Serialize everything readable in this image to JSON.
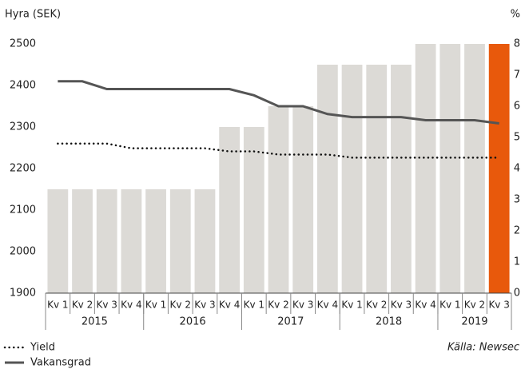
{
  "chart_data": {
    "type": "bar_line",
    "y_label": "Hyra (SEK)",
    "y2_label": "%",
    "source": "Källa: Newsec",
    "categories": [
      "Kv 1",
      "Kv 2",
      "Kv 3",
      "Kv 4",
      "Kv 1",
      "Kv 2",
      "Kv 3",
      "Kv 4",
      "Kv 1",
      "Kv 2",
      "Kv 3",
      "Kv 4",
      "Kv 1",
      "Kv 2",
      "Kv 3",
      "Kv 4",
      "Kv 1",
      "Kv 2",
      "Kv 3"
    ],
    "year_groups": [
      {
        "label": "2015",
        "size": 4
      },
      {
        "label": "2016",
        "size": 4
      },
      {
        "label": "2017",
        "size": 4
      },
      {
        "label": "2018",
        "size": 4
      },
      {
        "label": "2019",
        "size": 3
      }
    ],
    "ylim": [
      1900,
      2500
    ],
    "yticks": [
      1900,
      2000,
      2100,
      2200,
      2300,
      2400,
      2500
    ],
    "y2lim": [
      0,
      8
    ],
    "y2ticks": [
      0,
      1,
      2,
      3,
      4,
      5,
      6,
      7,
      8
    ],
    "grid": false,
    "bars": {
      "values": [
        2150,
        2150,
        2150,
        2150,
        2150,
        2150,
        2150,
        2300,
        2300,
        2350,
        2350,
        2450,
        2450,
        2450,
        2450,
        2500,
        2500,
        2500,
        2500
      ],
      "colors": [
        "#dcdad6",
        "#dcdad6",
        "#dcdad6",
        "#dcdad6",
        "#dcdad6",
        "#dcdad6",
        "#dcdad6",
        "#dcdad6",
        "#dcdad6",
        "#dcdad6",
        "#dcdad6",
        "#dcdad6",
        "#dcdad6",
        "#dcdad6",
        "#dcdad6",
        "#dcdad6",
        "#dcdad6",
        "#dcdad6",
        "#e8590c"
      ]
    },
    "series": [
      {
        "name": "Yield",
        "color": "#111111",
        "style": "dotted",
        "axis": "y2",
        "values": [
          4.8,
          4.8,
          4.8,
          4.65,
          4.65,
          4.65,
          4.65,
          4.55,
          4.55,
          4.45,
          4.45,
          4.45,
          4.35,
          4.35,
          4.35,
          4.35,
          4.35,
          4.35,
          4.35
        ]
      },
      {
        "name": "Vakansgrad",
        "color": "#555555",
        "style": "solid",
        "axis": "y2",
        "values": [
          6.8,
          6.8,
          6.55,
          6.55,
          6.55,
          6.55,
          6.55,
          6.55,
          6.35,
          6.0,
          6.0,
          5.75,
          5.65,
          5.65,
          5.65,
          5.55,
          5.55,
          5.55,
          5.45
        ]
      }
    ]
  }
}
